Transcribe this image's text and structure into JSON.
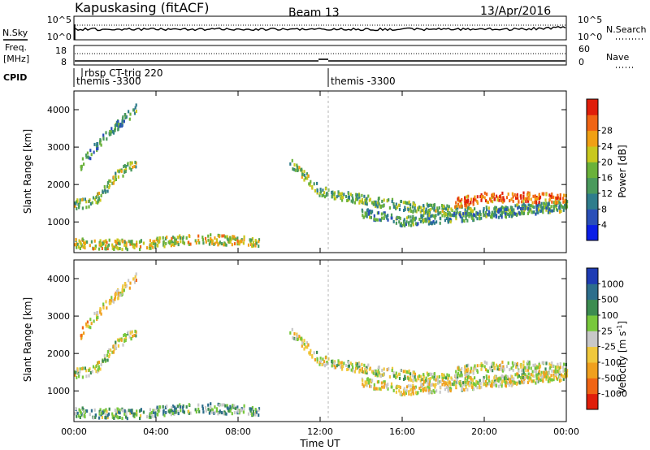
{
  "header": {
    "station": "Kapuskasing (fitACF)",
    "beam": "Beam 13",
    "date": "13/Apr/2016"
  },
  "sky_panel": {
    "left_label": "N.Sky",
    "left_ticks": [
      "10^5",
      "10^0"
    ],
    "right_ticks": [
      "10^5",
      "10^0"
    ],
    "right_label": "N.Search"
  },
  "freq_panel": {
    "left_label_1": "Freq.",
    "left_label_2": "[MHz]",
    "left_ticks": [
      "18",
      "8"
    ],
    "right_ticks": [
      "60",
      "0"
    ],
    "right_label": "Nave"
  },
  "cpid": {
    "label": "CPID",
    "programs": [
      "rbsp CT-trig 220",
      "themis -3300",
      "themis -3300"
    ]
  },
  "chart_data": [
    {
      "type": "heatmap",
      "title": "",
      "xlabel": "",
      "ylabel": "Slant Range [km]",
      "xlim": [
        0,
        24
      ],
      "ylim": [
        180,
        4500
      ],
      "x_ticks": [
        "00:00",
        "04:00",
        "08:00",
        "12:00",
        "16:00",
        "20:00",
        "00:00"
      ],
      "y_ticks": [
        "1000",
        "2000",
        "3000",
        "4000"
      ],
      "colorbar": {
        "label": "Power [dB]",
        "ticks": [
          "4",
          "8",
          "12",
          "16",
          "20",
          "24",
          "28"
        ],
        "colors": [
          "#0a1ee6",
          "#2a4fb8",
          "#2f7d8c",
          "#4a9a5c",
          "#6ab23a",
          "#c8c81e",
          "#f0a014",
          "#f06414",
          "#e01e0a"
        ]
      },
      "series": [
        {
          "name": "",
          "t": [
            0.0,
            1.0,
            2.0,
            3.0
          ],
          "range": [
            1450,
            1550,
            2200,
            2600
          ],
          "level": 0.5
        },
        {
          "name": "",
          "t": [
            0.3,
            1.5,
            3.0
          ],
          "range": [
            2500,
            3300,
            4000
          ],
          "level": 0.35
        },
        {
          "name": "",
          "t": [
            0.0,
            3.0,
            6.0,
            9.0
          ],
          "range": [
            420,
            380,
            550,
            450
          ],
          "level": 0.6
        },
        {
          "name": "",
          "t": [
            10.5,
            12.0,
            14.5,
            17.0,
            19.5,
            22.0,
            24.0
          ],
          "range": [
            2600,
            1800,
            1550,
            1350,
            1250,
            1350,
            1400
          ],
          "level": 0.45
        },
        {
          "name": "",
          "t": [
            14.0,
            16.0,
            18.0,
            20.0,
            22.0,
            24.0
          ],
          "range": [
            1250,
            1000,
            1100,
            1200,
            1300,
            1450
          ],
          "level": 0.35
        },
        {
          "name": "",
          "t": [
            18.5,
            20.0,
            22.0,
            24.0
          ],
          "range": [
            1500,
            1650,
            1650,
            1600
          ],
          "level": 0.85
        }
      ]
    },
    {
      "type": "heatmap",
      "title": "",
      "xlabel": "Time UT",
      "ylabel": "Slant Range [km]",
      "xlim": [
        0,
        24
      ],
      "ylim": [
        180,
        4500
      ],
      "x_ticks": [
        "00:00",
        "04:00",
        "08:00",
        "12:00",
        "16:00",
        "20:00",
        "00:00"
      ],
      "y_ticks": [
        "1000",
        "2000",
        "3000",
        "4000"
      ],
      "colorbar": {
        "label": "Velocity [m s^-1]",
        "ticks": [
          "1000",
          "500",
          "100",
          "25",
          "-25",
          "-100",
          "-500",
          "-1000"
        ],
        "colors": [
          "#1e3cb4",
          "#2d6e8c",
          "#3c8c50",
          "#78c83c",
          "#c8c8c8",
          "#f0c83c",
          "#f0a01e",
          "#f06414",
          "#e01e0a"
        ]
      },
      "series": [
        {
          "name": "",
          "t": [
            0.0,
            1.0,
            2.0,
            3.0
          ],
          "range": [
            1450,
            1550,
            2200,
            2600
          ],
          "level": 0.5
        },
        {
          "name": "",
          "t": [
            0.3,
            1.5,
            3.0
          ],
          "range": [
            2500,
            3300,
            4000
          ],
          "level": 0.6
        },
        {
          "name": "",
          "t": [
            0.0,
            3.0,
            6.0,
            9.0
          ],
          "range": [
            420,
            380,
            550,
            450
          ],
          "level": 0.35
        },
        {
          "name": "",
          "t": [
            10.5,
            12.0,
            14.5,
            17.0,
            19.5,
            22.0,
            24.0
          ],
          "range": [
            2600,
            1800,
            1550,
            1350,
            1250,
            1350,
            1400
          ],
          "level": 0.5
        },
        {
          "name": "",
          "t": [
            14.0,
            16.0,
            18.0,
            20.0,
            22.0,
            24.0
          ],
          "range": [
            1250,
            1000,
            1100,
            1200,
            1300,
            1450
          ],
          "level": 0.55
        },
        {
          "name": "",
          "t": [
            18.5,
            20.0,
            22.0,
            24.0
          ],
          "range": [
            1500,
            1650,
            1650,
            1600
          ],
          "level": 0.5
        }
      ]
    }
  ]
}
